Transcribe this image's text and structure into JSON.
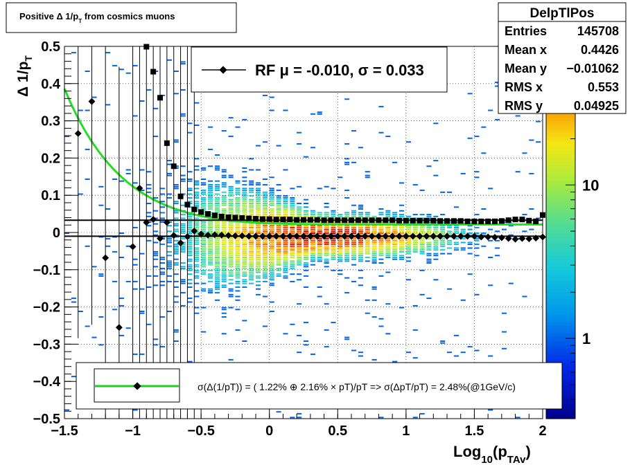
{
  "chart_data": {
    "type": "heatmap",
    "title": "Positive Δ 1/p",
    "title_sub": "T",
    "title_rest": " from cosmics muons",
    "xlabel_main": "Log",
    "xlabel_sub1": "10",
    "xlabel_mid": "(p",
    "xlabel_sub2": "TAv",
    "xlabel_end": ")",
    "ylabel_main": "Δ 1/p",
    "ylabel_sub": "T",
    "xlim": [
      -1.5,
      2.0
    ],
    "ylim": [
      -0.5,
      0.5
    ],
    "x_ticks": [
      {
        "v": -1.5,
        "label": "−1.5"
      },
      {
        "v": -1.0,
        "label": "−1"
      },
      {
        "v": -0.5,
        "label": "−0.5"
      },
      {
        "v": 0.0,
        "label": "0"
      },
      {
        "v": 0.5,
        "label": "0.5"
      },
      {
        "v": 1.0,
        "label": "1"
      },
      {
        "v": 1.5,
        "label": "1.5"
      },
      {
        "v": 2.0,
        "label": "2"
      }
    ],
    "y_ticks": [
      {
        "v": -0.5,
        "label": "−0.5"
      },
      {
        "v": -0.4,
        "label": "−0.4"
      },
      {
        "v": -0.3,
        "label": "−0.3"
      },
      {
        "v": -0.2,
        "label": "−0.2"
      },
      {
        "v": -0.1,
        "label": "−0.1"
      },
      {
        "v": 0.0,
        "label": "0"
      },
      {
        "v": 0.1,
        "label": "0.1"
      },
      {
        "v": 0.2,
        "label": "0.2"
      },
      {
        "v": 0.3,
        "label": "0.3"
      },
      {
        "v": 0.4,
        "label": "0.4"
      },
      {
        "v": 0.5,
        "label": "0.5"
      }
    ],
    "grid": true,
    "colorbar": {
      "scale": "log",
      "range": [
        0.3,
        80
      ],
      "ticks": [
        {
          "v": 1,
          "label": "1"
        },
        {
          "v": 10,
          "label": "10"
        }
      ]
    },
    "stats_box": {
      "name": "DelpTlPos",
      "rows": [
        {
          "label": "Entries",
          "value": "145708"
        },
        {
          "label": "Mean x",
          "value": "0.4426"
        },
        {
          "label": "Mean y",
          "value": "−0.01062"
        },
        {
          "label": "RMS x",
          "value": "0.553"
        },
        {
          "label": "RMS y",
          "value": "0.04925"
        }
      ]
    },
    "legend_top": {
      "text_prefix": "RF ",
      "text_mu": "μ = -0.010, ",
      "text_sigma": "σ = ",
      "text_value": "  0.033"
    },
    "legend_bottom": {
      "text": "σ(Δ(1/pT)) = ( 1.22% ⊕  2.16% × pT)/pT => σ(ΔpT/pT) =  2.48%(@1GeV/c)"
    },
    "horizontal_lines": [
      0.033,
      -0.01
    ],
    "resolution_curve": {
      "a": 0.0122,
      "b": 0.0216,
      "ymax": 0.5,
      "x_range": [
        -1.5,
        2.0
      ]
    },
    "mean_points_x": [
      -1.4,
      -1.3,
      -1.2,
      -1.1,
      -1.0,
      -0.95,
      -0.9,
      -0.85,
      -0.8,
      -0.75,
      -0.7,
      -0.65,
      -0.6,
      -0.55,
      -0.5,
      -0.45,
      -0.4,
      -0.35,
      -0.3,
      -0.25,
      -0.2,
      -0.15,
      -0.1,
      -0.05,
      0.0,
      0.05,
      0.1,
      0.15,
      0.2,
      0.25,
      0.3,
      0.35,
      0.4,
      0.45,
      0.5,
      0.55,
      0.6,
      0.65,
      0.7,
      0.75,
      0.8,
      0.85,
      0.9,
      0.95,
      1.0,
      1.05,
      1.1,
      1.15,
      1.2,
      1.25,
      1.3,
      1.35,
      1.4,
      1.45,
      1.5,
      1.55,
      1.6,
      1.65,
      1.7,
      1.75,
      1.8,
      1.85,
      1.9,
      1.95,
      2.0
    ],
    "mean_points_y": [
      0.266,
      0.352,
      -0.068,
      -0.255,
      -0.038,
      0.119,
      0.027,
      0.035,
      -0.016,
      0.027,
      -0.008,
      -0.028,
      -0.011,
      0.004,
      -0.004,
      -0.007,
      -0.006,
      -0.007,
      -0.008,
      -0.009,
      -0.009,
      -0.01,
      -0.01,
      -0.01,
      -0.01,
      -0.01,
      -0.01,
      -0.01,
      -0.01,
      -0.01,
      -0.01,
      -0.01,
      -0.01,
      -0.01,
      -0.01,
      -0.01,
      -0.01,
      -0.01,
      -0.01,
      -0.01,
      -0.01,
      -0.01,
      -0.01,
      -0.01,
      -0.01,
      -0.01,
      -0.01,
      -0.01,
      -0.01,
      -0.01,
      -0.01,
      -0.01,
      -0.01,
      -0.01,
      -0.01,
      -0.012,
      -0.012,
      -0.013,
      -0.014,
      -0.016,
      -0.018,
      -0.016,
      -0.017,
      -0.015,
      -0.012
    ],
    "sigma_points_x": [
      -0.9,
      -0.85,
      -0.8,
      -0.75,
      -0.7,
      -0.65,
      -0.6,
      -0.55,
      -0.5,
      -0.45,
      -0.4,
      -0.35,
      -0.3,
      -0.25,
      -0.2,
      -0.15,
      -0.1,
      -0.05,
      0.0,
      0.05,
      0.1,
      0.15,
      0.2,
      0.25,
      0.3,
      0.35,
      0.4,
      0.45,
      0.5,
      0.55,
      0.6,
      0.65,
      0.7,
      0.75,
      0.8,
      0.85,
      0.9,
      0.95,
      1.0,
      1.05,
      1.1,
      1.15,
      1.2,
      1.25,
      1.3,
      1.35,
      1.4,
      1.45,
      1.5,
      1.55,
      1.6,
      1.65,
      1.7,
      1.75,
      1.8,
      1.85,
      1.9,
      1.95,
      2.0
    ],
    "sigma_points_y": [
      0.499,
      0.432,
      0.362,
      0.24,
      0.178,
      0.097,
      0.075,
      0.062,
      0.055,
      0.05,
      0.046,
      0.043,
      0.041,
      0.04,
      0.039,
      0.038,
      0.037,
      0.036,
      0.036,
      0.035,
      0.035,
      0.035,
      0.034,
      0.034,
      0.034,
      0.034,
      0.033,
      0.033,
      0.033,
      0.033,
      0.033,
      0.033,
      0.033,
      0.033,
      0.033,
      0.033,
      0.033,
      0.032,
      0.032,
      0.032,
      0.032,
      0.032,
      0.032,
      0.031,
      0.031,
      0.031,
      0.031,
      0.03,
      0.03,
      0.03,
      0.03,
      0.03,
      0.031,
      0.033,
      0.035,
      0.035,
      0.032,
      0.03,
      0.047
    ]
  }
}
